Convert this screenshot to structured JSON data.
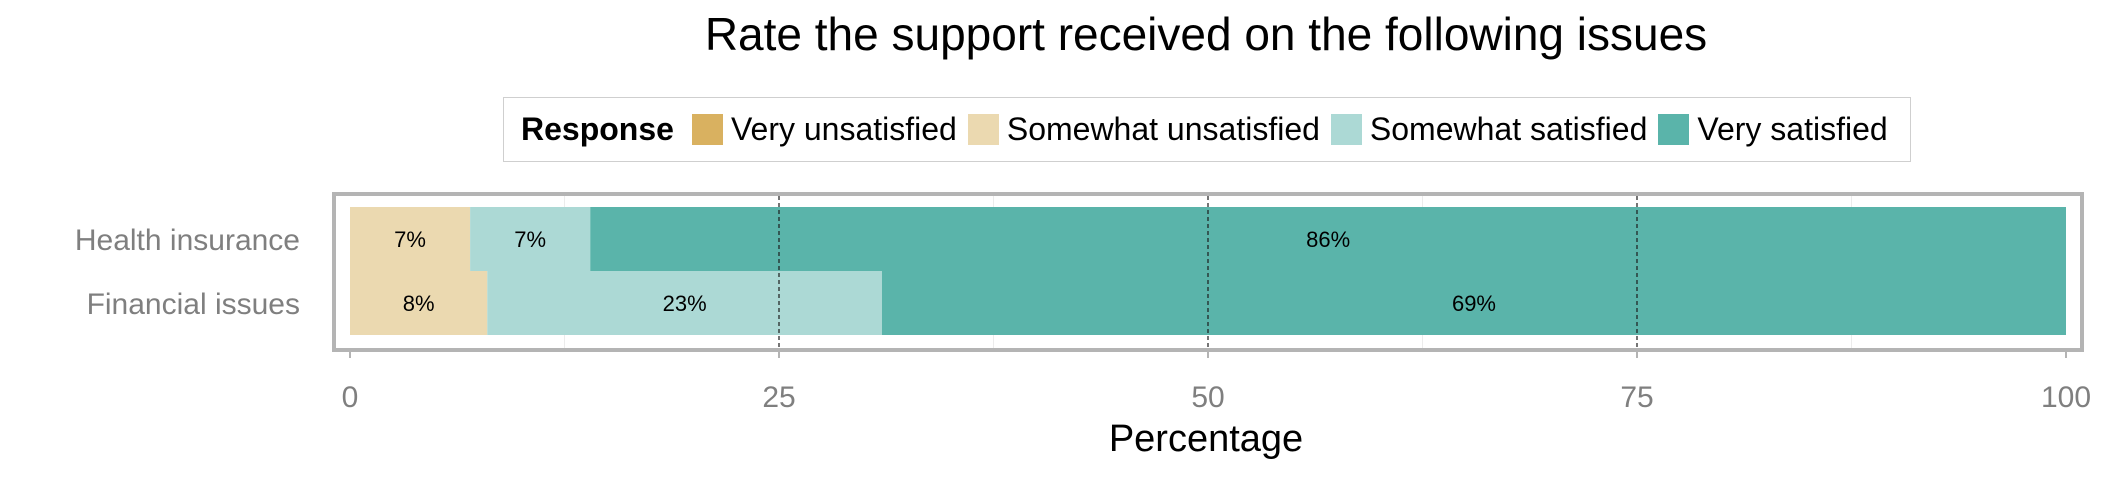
{
  "chart_data": {
    "type": "bar",
    "orientation": "horizontal",
    "stacked": true,
    "title": "Rate the support received on the following issues",
    "xlabel": "Percentage",
    "ylabel": "",
    "xlim": [
      0,
      100
    ],
    "xticks": [
      0,
      25,
      50,
      75,
      100
    ],
    "categories": [
      "Health insurance",
      "Financial issues"
    ],
    "legend": {
      "title": "Response",
      "placement": "top",
      "entries": [
        "Very unsatisfied",
        "Somewhat unsatisfied",
        "Somewhat satisfied",
        "Very satisfied"
      ]
    },
    "series": [
      {
        "name": "Very unsatisfied",
        "color": "#d9b160",
        "values": [
          0,
          0
        ]
      },
      {
        "name": "Somewhat unsatisfied",
        "color": "#ebd9b0",
        "values": [
          7,
          8
        ]
      },
      {
        "name": "Somewhat satisfied",
        "color": "#acd9d5",
        "values": [
          7,
          23
        ]
      },
      {
        "name": "Very satisfied",
        "color": "#5ab4aa",
        "values": [
          86,
          69
        ]
      }
    ],
    "data_labels": [
      [
        "",
        "7%",
        "7%",
        "86%"
      ],
      [
        "",
        "8%",
        "23%",
        "69%"
      ]
    ],
    "reference_lines": [
      25,
      50,
      75
    ],
    "grid": true
  }
}
